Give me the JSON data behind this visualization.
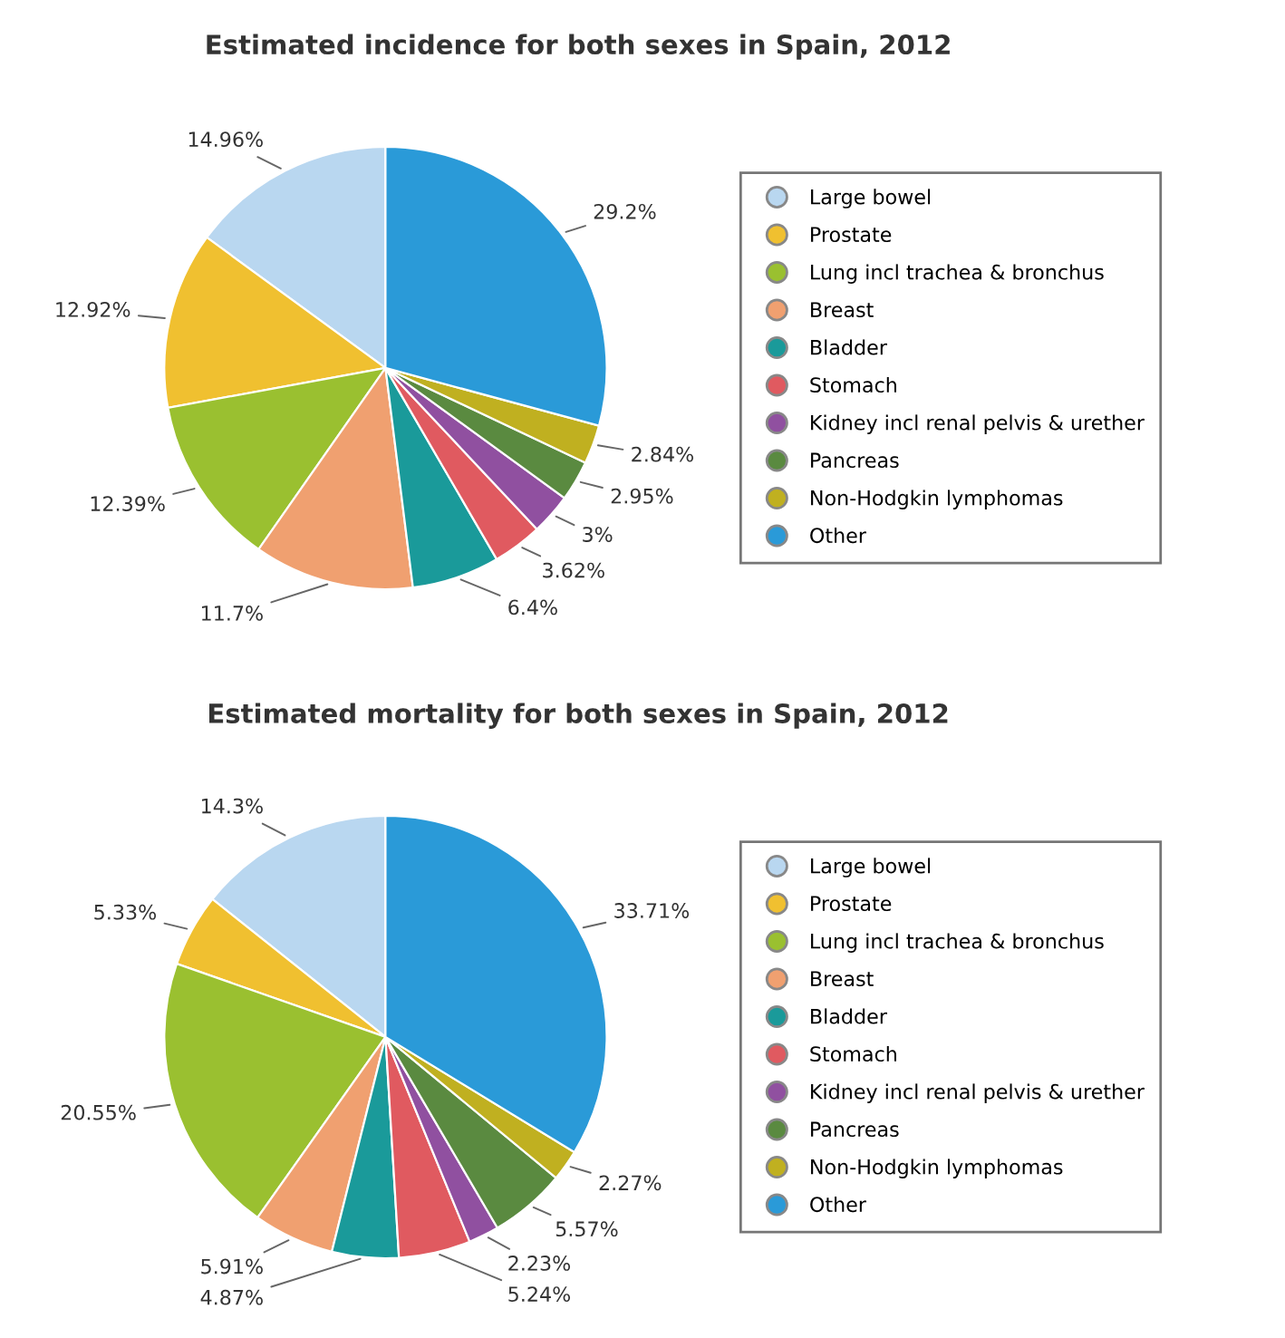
{
  "chart_data": [
    {
      "type": "pie",
      "title": "Estimated incidence for both sexes in Spain, 2012",
      "categories": [
        "Large bowel",
        "Prostate",
        "Lung incl trachea & bronchus",
        "Breast",
        "Bladder",
        "Stomach",
        "Kidney incl renal pelvis & urether",
        "Pancreas",
        "Non-Hodgkin lymphomas",
        "Other"
      ],
      "values": [
        14.96,
        12.92,
        12.39,
        11.7,
        6.4,
        3.62,
        3,
        2.95,
        2.84,
        29.2
      ],
      "value_labels": [
        "14.96%",
        "12.92%",
        "12.39%",
        "11.7%",
        "6.4%",
        "3.62%",
        "3%",
        "2.95%",
        "2.84%",
        "29.2%"
      ],
      "colors": [
        "#b9d7f0",
        "#f0c030",
        "#9ac030",
        "#f0a070",
        "#1a9a9a",
        "#e05a60",
        "#9050a0",
        "#5a8a40",
        "#c0b020",
        "#2a9ad8"
      ],
      "legend": "right"
    },
    {
      "type": "pie",
      "title": "Estimated mortality for both sexes in Spain, 2012",
      "categories": [
        "Large bowel",
        "Prostate",
        "Lung incl trachea & bronchus",
        "Breast",
        "Bladder",
        "Stomach",
        "Kidney incl renal pelvis & urether",
        "Pancreas",
        "Non-Hodgkin lymphomas",
        "Other"
      ],
      "values": [
        14.3,
        5.33,
        20.55,
        5.91,
        4.87,
        5.24,
        2.23,
        5.57,
        2.27,
        33.71
      ],
      "value_labels": [
        "14.3%",
        "5.33%",
        "20.55%",
        "5.91%",
        "4.87%",
        "5.24%",
        "2.23%",
        "5.57%",
        "2.27%",
        "33.71%"
      ],
      "colors": [
        "#b9d7f0",
        "#f0c030",
        "#9ac030",
        "#f0a070",
        "#1a9a9a",
        "#e05a60",
        "#9050a0",
        "#5a8a40",
        "#c0b020",
        "#2a9ad8"
      ],
      "legend": "right"
    }
  ]
}
